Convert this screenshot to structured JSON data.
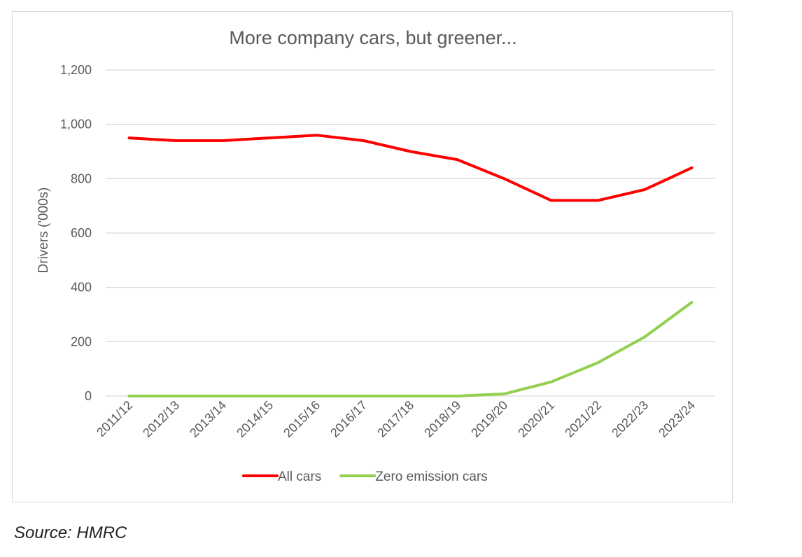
{
  "chart_data": {
    "type": "line",
    "title": "More company cars, but greener...",
    "xlabel": "",
    "ylabel": "Drivers  ('000s)",
    "ylim": [
      0,
      1200
    ],
    "yticks": [
      0,
      200,
      400,
      600,
      800,
      1000,
      1200
    ],
    "ytick_labels": [
      "0",
      "200",
      "400",
      "600",
      "800",
      "1,000",
      "1,200"
    ],
    "grid": true,
    "legend_position": "bottom",
    "categories": [
      "2011/12",
      "2012/13",
      "2013/14",
      "2014/15",
      "2015/16",
      "2016/17",
      "2017/18",
      "2018/19",
      "2019/20",
      "2020/21",
      "2021/22",
      "2022/23",
      "2023/24"
    ],
    "series": [
      {
        "name": "All cars",
        "color": "#ff0000",
        "values": [
          950,
          940,
          940,
          950,
          960,
          940,
          900,
          870,
          800,
          720,
          720,
          760,
          840
        ]
      },
      {
        "name": "Zero emission cars",
        "color": "#92d050",
        "values": [
          0,
          0,
          0,
          0,
          0,
          0,
          0,
          0,
          8,
          52,
          123,
          218,
          345
        ]
      }
    ]
  },
  "source": "Source: HMRC"
}
